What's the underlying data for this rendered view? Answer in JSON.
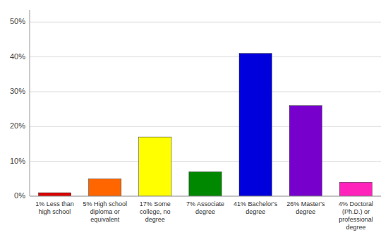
{
  "chart_data": {
    "type": "bar",
    "categories": [
      "1% Less than\nhigh school",
      "5% High school\ndiploma or\nequivalent",
      "17% Some\ncollege, no\ndegree",
      "7% Associate\ndegree",
      "41% Bachelor's\ndegree",
      "26% Master's\ndegree",
      "4% Doctoral\n(Ph.D.) or\nprofessional\ndegree"
    ],
    "values": [
      1,
      5,
      17,
      7,
      41,
      26,
      4
    ],
    "colors": [
      "#dd0000",
      "#ff6600",
      "#ffff00",
      "#008800",
      "#0000dd",
      "#7700cc",
      "#ff22bb"
    ],
    "ylim": [
      0,
      53.5
    ],
    "yticks": [
      {
        "value": 0,
        "label": "0%"
      },
      {
        "value": 10,
        "label": "10%"
      },
      {
        "value": 20,
        "label": "20%"
      },
      {
        "value": 30,
        "label": "30%"
      },
      {
        "value": 40,
        "label": "40%"
      },
      {
        "value": 50,
        "label": "50%"
      }
    ],
    "grid": true
  }
}
